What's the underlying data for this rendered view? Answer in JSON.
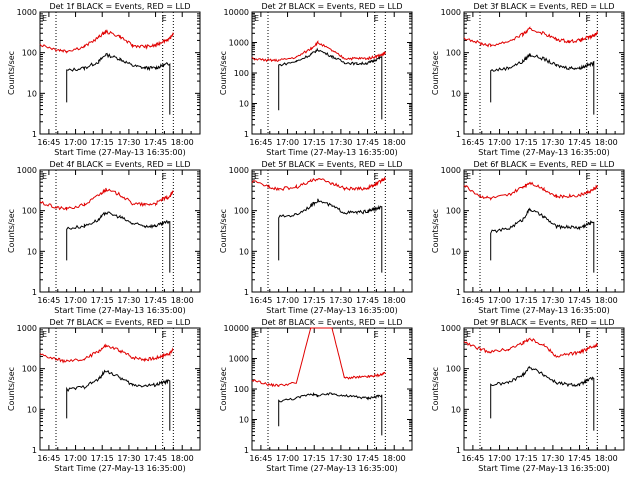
{
  "figure": {
    "xlabel": "Start Time (27-May-13 16:35:00)",
    "ylabel": "Counts/sec",
    "x_ticks": [
      "16:45",
      "17:00",
      "17:15",
      "17:30",
      "17:45",
      "18:00"
    ],
    "y_ticks": [
      "1",
      "10",
      "100",
      "1000"
    ],
    "y_ticks_det8": [
      "1",
      "10",
      "100",
      "1000",
      "10000"
    ],
    "marker_letters": [
      "E",
      "E"
    ],
    "colors": {
      "events": "#000000",
      "lld": "#e00000",
      "axes": "#000000",
      "background": "#ffffff"
    }
  },
  "chart_data": [
    {
      "type": "line",
      "title": "Det 1f BLACK = Events, RED = LLD",
      "yscale": "log",
      "xlim_minutes": [
        5,
        95
      ],
      "ylim": [
        1,
        1000
      ],
      "x": [
        5,
        14,
        20,
        30,
        38,
        42,
        50,
        57,
        64,
        70,
        74,
        78,
        80
      ],
      "series": [
        {
          "name": "Events",
          "values": [
            null,
            null,
            36,
            42,
            60,
            90,
            70,
            48,
            42,
            42,
            48,
            55,
            null
          ]
        },
        {
          "name": "LLD",
          "values": [
            160,
            120,
            110,
            140,
            240,
            330,
            250,
            150,
            140,
            150,
            190,
            220,
            300
          ]
        }
      ],
      "dotted_x_minutes": [
        14,
        74,
        80
      ]
    },
    {
      "type": "line",
      "title": "Det 2f BLACK = Events, RED = LLD",
      "yscale": "log",
      "xlim_minutes": [
        5,
        95
      ],
      "ylim": [
        1,
        10000
      ],
      "x": [
        5,
        14,
        20,
        30,
        38,
        42,
        50,
        57,
        64,
        70,
        74,
        78,
        80
      ],
      "series": [
        {
          "name": "Events",
          "values": [
            null,
            null,
            180,
            240,
            400,
            580,
            350,
            220,
            200,
            210,
            260,
            340,
            null
          ]
        },
        {
          "name": "LLD",
          "values": [
            300,
            260,
            260,
            330,
            620,
            1000,
            540,
            300,
            300,
            300,
            340,
            400,
            450
          ]
        }
      ],
      "dotted_x_minutes": [
        14,
        74,
        80
      ]
    },
    {
      "type": "line",
      "title": "Det 3f BLACK = Events, RED = LLD",
      "yscale": "log",
      "xlim_minutes": [
        5,
        95
      ],
      "ylim": [
        1,
        1000
      ],
      "x": [
        5,
        14,
        20,
        30,
        38,
        42,
        50,
        57,
        64,
        70,
        74,
        78,
        80
      ],
      "series": [
        {
          "name": "Events",
          "values": [
            null,
            null,
            36,
            42,
            60,
            90,
            70,
            48,
            42,
            42,
            48,
            55,
            null
          ]
        },
        {
          "name": "LLD",
          "values": [
            240,
            170,
            150,
            190,
            280,
            380,
            300,
            210,
            190,
            200,
            230,
            260,
            320
          ]
        }
      ],
      "dotted_x_minutes": [
        14,
        74,
        80
      ]
    },
    {
      "type": "line",
      "title": "Det 4f BLACK = Events, RED = LLD",
      "yscale": "log",
      "xlim_minutes": [
        5,
        95
      ],
      "ylim": [
        1,
        1000
      ],
      "x": [
        5,
        14,
        20,
        30,
        38,
        42,
        50,
        57,
        64,
        70,
        74,
        78,
        80
      ],
      "series": [
        {
          "name": "Events",
          "values": [
            null,
            null,
            36,
            42,
            60,
            90,
            70,
            48,
            42,
            42,
            48,
            55,
            null
          ]
        },
        {
          "name": "LLD",
          "values": [
            160,
            120,
            110,
            140,
            240,
            330,
            250,
            150,
            140,
            150,
            190,
            220,
            300
          ]
        }
      ],
      "dotted_x_minutes": [
        14,
        74,
        80
      ]
    },
    {
      "type": "line",
      "title": "Det 5f BLACK = Events, RED = LLD",
      "yscale": "log",
      "xlim_minutes": [
        5,
        95
      ],
      "ylim": [
        1,
        1000
      ],
      "x": [
        5,
        14,
        20,
        30,
        38,
        42,
        50,
        57,
        64,
        70,
        74,
        78,
        80
      ],
      "series": [
        {
          "name": "Events",
          "values": [
            null,
            null,
            70,
            80,
            130,
            180,
            130,
            90,
            90,
            95,
            110,
            120,
            null
          ]
        },
        {
          "name": "LLD",
          "values": [
            520,
            400,
            340,
            380,
            520,
            620,
            470,
            350,
            340,
            360,
            430,
            560,
            620
          ]
        }
      ],
      "dotted_x_minutes": [
        14,
        74,
        80
      ]
    },
    {
      "type": "line",
      "title": "Det 6f BLACK = Events, RED = LLD",
      "yscale": "log",
      "xlim_minutes": [
        5,
        95
      ],
      "ylim": [
        1,
        1000
      ],
      "x": [
        5,
        14,
        20,
        30,
        38,
        42,
        50,
        57,
        64,
        70,
        74,
        78,
        80
      ],
      "series": [
        {
          "name": "Events",
          "values": [
            null,
            null,
            30,
            36,
            60,
            110,
            70,
            40,
            40,
            38,
            45,
            55,
            null
          ]
        },
        {
          "name": "LLD",
          "values": [
            420,
            230,
            200,
            240,
            380,
            500,
            340,
            220,
            230,
            240,
            280,
            330,
            400
          ]
        }
      ],
      "dotted_x_minutes": [
        14,
        74,
        80
      ]
    },
    {
      "type": "line",
      "title": "Det 7f BLACK = Events, RED = LLD",
      "yscale": "log",
      "xlim_minutes": [
        5,
        95
      ],
      "ylim": [
        1,
        1000
      ],
      "x": [
        5,
        14,
        20,
        30,
        38,
        42,
        50,
        57,
        64,
        70,
        74,
        78,
        80
      ],
      "series": [
        {
          "name": "Events",
          "values": [
            null,
            null,
            30,
            36,
            55,
            90,
            60,
            40,
            38,
            40,
            45,
            50,
            null
          ]
        },
        {
          "name": "LLD",
          "values": [
            220,
            170,
            150,
            170,
            270,
            360,
            280,
            190,
            170,
            180,
            210,
            240,
            300
          ]
        }
      ],
      "dotted_x_minutes": [
        14,
        74,
        80
      ]
    },
    {
      "type": "line",
      "title": "Det 8f BLACK = Events, RED = LLD",
      "yscale": "log",
      "xlim_minutes": [
        5,
        95
      ],
      "ylim": [
        1,
        10000
      ],
      "x": [
        5,
        14,
        20,
        30,
        38,
        42,
        50,
        57,
        64,
        70,
        74,
        78,
        80
      ],
      "series": [
        {
          "name": "Events",
          "values": [
            null,
            null,
            40,
            50,
            70,
            60,
            70,
            60,
            55,
            50,
            55,
            60,
            null
          ]
        },
        {
          "name": "LLD",
          "values": [
            200,
            140,
            130,
            160,
            10000,
            10000,
            10000,
            230,
            240,
            250,
            270,
            300,
            350
          ]
        }
      ],
      "dotted_x_minutes": [
        14,
        74,
        80
      ]
    },
    {
      "type": "line",
      "title": "Det 9f BLACK = Events, RED = LLD",
      "yscale": "log",
      "xlim_minutes": [
        5,
        95
      ],
      "ylim": [
        1,
        1000
      ],
      "x": [
        5,
        14,
        20,
        30,
        38,
        42,
        50,
        57,
        64,
        70,
        74,
        78,
        80
      ],
      "series": [
        {
          "name": "Events",
          "values": [
            null,
            null,
            40,
            45,
            70,
            110,
            70,
            45,
            40,
            40,
            50,
            60,
            null
          ]
        },
        {
          "name": "LLD",
          "values": [
            450,
            300,
            260,
            300,
            430,
            550,
            380,
            200,
            230,
            250,
            300,
            360,
            380
          ]
        }
      ],
      "dotted_x_minutes": [
        14,
        74,
        80
      ]
    }
  ]
}
